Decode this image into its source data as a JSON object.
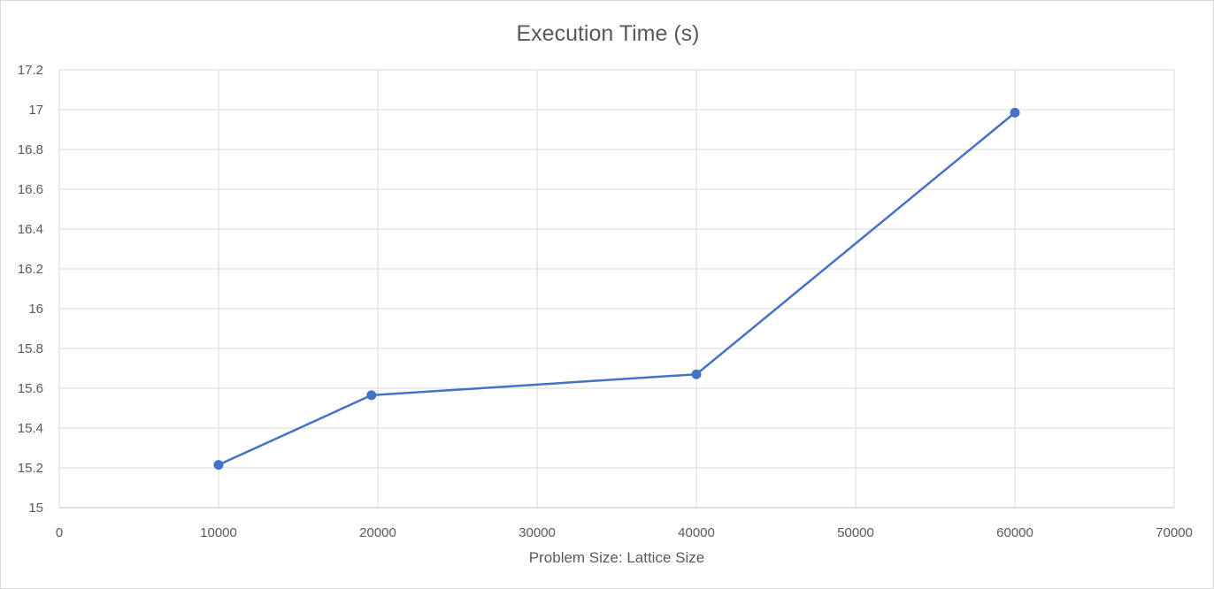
{
  "chart_data": {
    "type": "line",
    "title": "Execution Time (s)",
    "xlabel": "Problem Size: Lattice Size",
    "ylabel": "",
    "xlim": [
      0,
      70000
    ],
    "ylim": [
      15,
      17.2
    ],
    "xticks": [
      0,
      10000,
      20000,
      30000,
      40000,
      50000,
      60000,
      70000
    ],
    "yticks": [
      15,
      15.2,
      15.4,
      15.6,
      15.8,
      16,
      16.2,
      16.4,
      16.6,
      16.8,
      17,
      17.2
    ],
    "grid": true,
    "legend": "none",
    "series": [
      {
        "color": "#4472c4",
        "x": [
          10000,
          19600,
          40000,
          60000
        ],
        "y": [
          15.215,
          15.565,
          15.67,
          16.985
        ]
      }
    ]
  }
}
